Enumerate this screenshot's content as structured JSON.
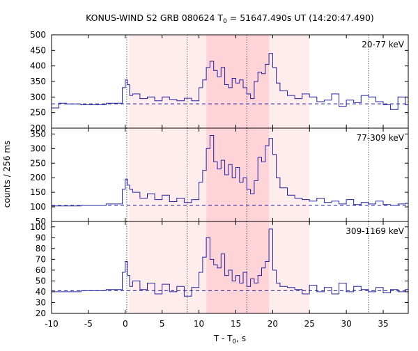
{
  "title": {
    "prefix": "KONUS-WIND S2 GRB 080624 T",
    "subscript": "0",
    "suffix": " = 51647.490s UT (14:20:47.490)"
  },
  "ylabel": "counts / 256 ms",
  "xlabel": {
    "prefix": "T - T",
    "subscript": "0",
    "suffix": ", s"
  },
  "chart_data": [
    {
      "type": "line",
      "step": true,
      "panel_label": "20-77 keV",
      "xlim": [
        -10,
        38.4
      ],
      "ylim": [
        200,
        500
      ],
      "yticks": [
        200,
        250,
        300,
        350,
        400,
        450,
        500
      ],
      "background": 278,
      "x": [
        -10,
        -9,
        -8,
        -6,
        -2.6,
        -0.4,
        0,
        0.3,
        0.6,
        1,
        2,
        3,
        4,
        5,
        6,
        7,
        8,
        9,
        10,
        10.5,
        11,
        11.5,
        12,
        12.5,
        13,
        13.5,
        14,
        14.5,
        15,
        15.5,
        16,
        16.5,
        17,
        17.5,
        18,
        18.5,
        19,
        19.5,
        20,
        20.5,
        21,
        22,
        23,
        24,
        25,
        26,
        27,
        28,
        29,
        30,
        31,
        32,
        33,
        34,
        35,
        36,
        37,
        38
      ],
      "values": [
        265,
        280,
        278,
        275,
        280,
        330,
        355,
        340,
        305,
        310,
        295,
        300,
        288,
        300,
        292,
        288,
        296,
        288,
        330,
        355,
        395,
        415,
        385,
        365,
        395,
        340,
        330,
        360,
        345,
        355,
        330,
        310,
        295,
        350,
        380,
        375,
        405,
        440,
        395,
        345,
        320,
        305,
        295,
        310,
        300,
        285,
        290,
        310,
        270,
        290,
        282,
        305,
        300,
        285,
        275,
        260,
        300,
        275
      ]
    },
    {
      "type": "line",
      "step": true,
      "panel_label": "77-309 keV",
      "xlim": [
        -10,
        38.4
      ],
      "ylim": [
        50,
        370
      ],
      "yticks": [
        50,
        100,
        150,
        200,
        250,
        300,
        350
      ],
      "background": 105,
      "x": [
        -10,
        -6,
        -2.6,
        -0.4,
        0,
        0.3,
        0.6,
        1,
        2,
        3,
        4,
        5,
        6,
        7,
        8,
        9,
        10,
        10.5,
        11,
        11.5,
        12,
        12.5,
        13,
        13.5,
        14,
        14.5,
        15,
        15.5,
        16,
        16.5,
        17,
        17.5,
        18,
        18.5,
        19,
        19.5,
        20,
        20.5,
        21,
        22,
        23,
        24,
        25,
        26,
        27,
        28,
        29,
        30,
        31,
        32,
        33,
        34,
        35,
        36,
        37,
        38
      ],
      "values": [
        103,
        105,
        110,
        160,
        195,
        175,
        160,
        150,
        130,
        145,
        125,
        140,
        118,
        130,
        115,
        125,
        185,
        225,
        300,
        345,
        255,
        230,
        260,
        210,
        245,
        200,
        235,
        185,
        200,
        160,
        145,
        190,
        270,
        255,
        310,
        335,
        280,
        200,
        165,
        140,
        130,
        125,
        120,
        130,
        115,
        120,
        110,
        125,
        108,
        115,
        110,
        120,
        108,
        105,
        110,
        112
      ]
    },
    {
      "type": "line",
      "step": true,
      "panel_label": "309-1169 keV",
      "xlim": [
        -10,
        38.4
      ],
      "ylim": [
        20,
        105
      ],
      "yticks": [
        20,
        30,
        40,
        50,
        60,
        70,
        80,
        90,
        100
      ],
      "background": 41,
      "x": [
        -10,
        -6,
        -2.6,
        -0.4,
        0,
        0.3,
        0.6,
        1,
        2,
        3,
        4,
        5,
        6,
        7,
        8,
        9,
        10,
        10.5,
        11,
        11.5,
        12,
        12.5,
        13,
        13.5,
        14,
        14.5,
        15,
        15.5,
        16,
        16.5,
        17,
        17.5,
        18,
        18.5,
        19,
        19.5,
        20,
        20.5,
        21,
        22,
        23,
        24,
        25,
        26,
        27,
        28,
        29,
        30,
        31,
        32,
        33,
        34,
        35,
        36,
        37,
        38
      ],
      "values": [
        40,
        41,
        42,
        58,
        68,
        55,
        45,
        50,
        42,
        48,
        38,
        47,
        40,
        45,
        36,
        44,
        58,
        72,
        90,
        70,
        65,
        62,
        75,
        55,
        60,
        50,
        55,
        48,
        58,
        45,
        52,
        48,
        55,
        62,
        68,
        98,
        60,
        48,
        45,
        44,
        42,
        38,
        46,
        40,
        44,
        38,
        48,
        40,
        45,
        42,
        40,
        44,
        39,
        42,
        40,
        42
      ]
    }
  ],
  "shaded_regions": [
    {
      "x0": 0.5,
      "x1": 25,
      "level": "light"
    },
    {
      "x0": 11,
      "x1": 19.5,
      "level": "medium"
    }
  ],
  "vertical_lines": [
    0.2,
    8.4,
    16.5,
    33
  ],
  "xticks": [
    -10,
    -5,
    0,
    5,
    10,
    15,
    20,
    25,
    30,
    35
  ],
  "colors": {
    "series": "#2020a0",
    "background_line": "#2020a0",
    "light_shade": "#ffecec",
    "medium_shade": "#ffd4d8",
    "vline": "#333333"
  }
}
